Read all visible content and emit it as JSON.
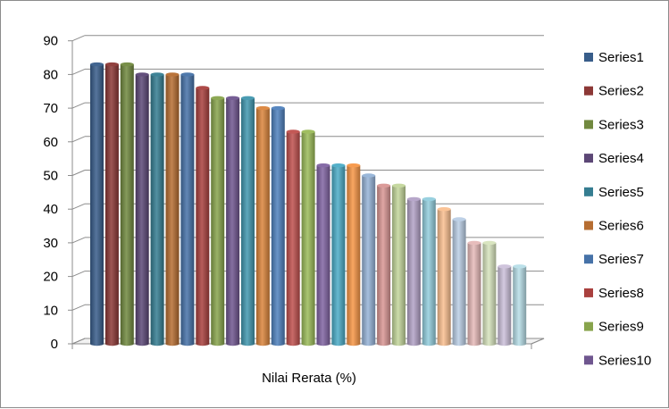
{
  "chart_data": {
    "type": "bar",
    "categories": [
      "Nilai Rerata (%)"
    ],
    "xlabel": "Nilai Rerata (%)",
    "ylim": [
      0,
      90
    ],
    "yticks": [
      0,
      10,
      20,
      30,
      40,
      50,
      60,
      70,
      80,
      90
    ],
    "grid": true,
    "legend_position": "right",
    "series": [
      {
        "name": "Series1",
        "value": 83,
        "color": "#385d8a"
      },
      {
        "name": "Series2",
        "value": 83,
        "color": "#8c3836"
      },
      {
        "name": "Series3",
        "value": 83,
        "color": "#71893f"
      },
      {
        "name": "Series4",
        "value": 80,
        "color": "#5c4776"
      },
      {
        "name": "Series5",
        "value": 80,
        "color": "#357d91"
      },
      {
        "name": "Series6",
        "value": 80,
        "color": "#b66d31"
      },
      {
        "name": "Series7",
        "value": 80,
        "color": "#4672a8"
      },
      {
        "name": "Series8",
        "value": 76,
        "color": "#a9403e"
      },
      {
        "name": "Series9",
        "value": 73,
        "color": "#88a44c"
      },
      {
        "name": "Series10",
        "value": 73,
        "color": "#6f568f"
      },
      {
        "name": "",
        "value": 73,
        "color": "#4197af"
      },
      {
        "name": "",
        "value": 70,
        "color": "#db853c"
      },
      {
        "name": "",
        "value": 70,
        "color": "#4f81bd"
      },
      {
        "name": "",
        "value": 63,
        "color": "#c0504d"
      },
      {
        "name": "",
        "value": 63,
        "color": "#9bbb59"
      },
      {
        "name": "",
        "value": 53,
        "color": "#8064a2"
      },
      {
        "name": "",
        "value": 53,
        "color": "#4bacc6"
      },
      {
        "name": "",
        "value": 53,
        "color": "#f79646"
      },
      {
        "name": "",
        "value": 50,
        "color": "#95b3d7"
      },
      {
        "name": "",
        "value": 47,
        "color": "#d99694"
      },
      {
        "name": "",
        "value": 47,
        "color": "#c3d69b"
      },
      {
        "name": "",
        "value": 43,
        "color": "#b3a2c7"
      },
      {
        "name": "",
        "value": 43,
        "color": "#93cddd"
      },
      {
        "name": "",
        "value": 40,
        "color": "#fac090"
      },
      {
        "name": "",
        "value": 37,
        "color": "#b9cde5"
      },
      {
        "name": "",
        "value": 30,
        "color": "#e6b9b8"
      },
      {
        "name": "",
        "value": 30,
        "color": "#d7e4bd"
      },
      {
        "name": "",
        "value": 23,
        "color": "#ccc1da"
      },
      {
        "name": "",
        "value": 23,
        "color": "#b7dee8"
      }
    ]
  }
}
